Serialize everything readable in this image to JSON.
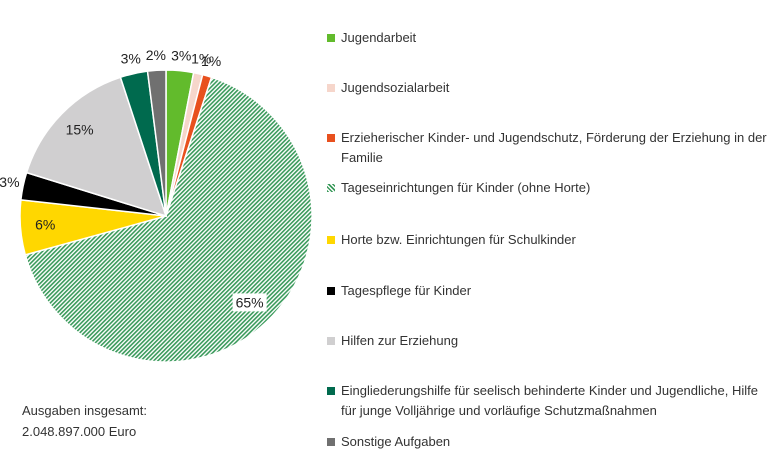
{
  "chart_data": {
    "type": "pie",
    "categories": [
      "Jugendarbeit",
      "Jugendsozialarbeit",
      "Erzieherischer Kinder- und Jugendschutz, Förderung der Erziehung in der Familie",
      "Tageseinrichtungen für Kinder (ohne Horte)",
      "Horte bzw. Einrichtungen für Schulkinder",
      "Tagespflege für Kinder",
      "Hilfen zur Erziehung",
      "Eingliederungshilfe für seelisch behinderte Kinder und Jugendliche, Hilfe für junge Volljährige und vorläufige Schutzmaßnahmen",
      "Sonstige Aufgaben"
    ],
    "values": [
      3,
      1,
      1,
      65,
      6,
      3,
      15,
      3,
      2
    ],
    "value_labels": [
      "3%",
      "1%",
      "1%",
      "65%",
      "6%",
      "3%",
      "15%",
      "3%",
      "2%"
    ],
    "colors": [
      "#62bb2c",
      "#f6d6cb",
      "#e8501e",
      "#3a9a5b",
      "#ffd700",
      "#000000",
      "#d0cfd0",
      "#006a4e",
      "#707070"
    ],
    "hatched": [
      false,
      false,
      false,
      true,
      false,
      false,
      false,
      false,
      false
    ],
    "annotation": [
      "Ausgaben insgesamt:",
      "2.048.897.000 Euro"
    ]
  }
}
